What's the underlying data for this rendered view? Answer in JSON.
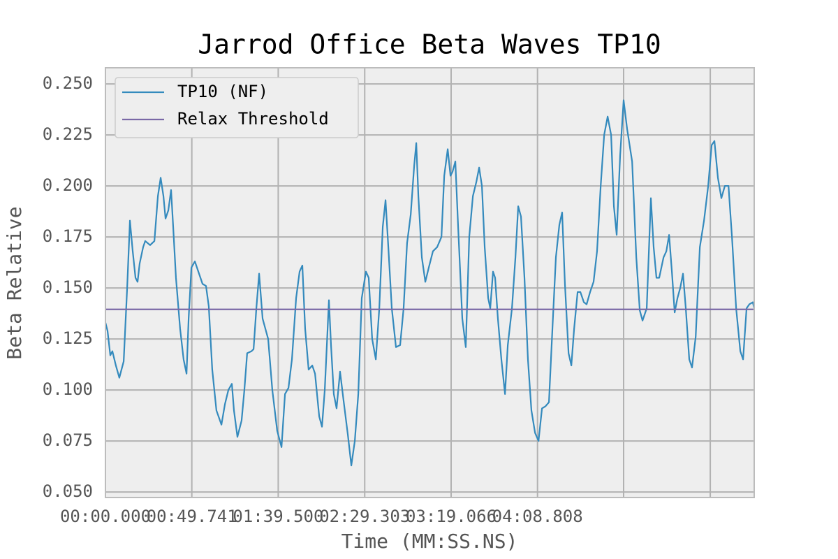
{
  "chart_data": {
    "type": "line",
    "title": "Jarrod Office Beta Waves TP10",
    "xlabel": "Time (MM:SS.NS)",
    "ylabel": "Beta Relative",
    "xlim": [
      0,
      373.6
    ],
    "ylim": [
      0.0473,
      0.2579
    ],
    "xticks": [
      {
        "value": 0,
        "label": "00:00.000"
      },
      {
        "value": 49.741,
        "label": "00:49.741"
      },
      {
        "value": 99.5,
        "label": "01:39.500"
      },
      {
        "value": 149.303,
        "label": "02:29.303"
      },
      {
        "value": 199.066,
        "label": "03:19.066"
      },
      {
        "value": 248.808,
        "label": "04:08.808"
      },
      {
        "value": 298.4,
        "label": null
      },
      {
        "value": 348.3,
        "label": null
      }
    ],
    "yticks": [
      {
        "value": 0.05,
        "label": "0.050"
      },
      0.075,
      {
        "value": 0.1,
        "label": "0.100"
      },
      0.125,
      {
        "value": 0.15,
        "label": "0.150"
      },
      0.175,
      {
        "value": 0.2,
        "label": "0.200"
      },
      0.225,
      {
        "value": 0.25,
        "label": "0.250"
      }
    ],
    "grid": true,
    "legend": "upper left",
    "series": [
      {
        "name": "TP10 (NF)",
        "color": "#348abd",
        "x": [
          0,
          1.2,
          2.8,
          4.0,
          6.0,
          8.0,
          10.5,
          12.5,
          14.1,
          15.7,
          17.3,
          18.5,
          19.7,
          21.7,
          22.9,
          25.7,
          28.2,
          30.2,
          31.8,
          33.4,
          34.6,
          36.2,
          37.8,
          39.0,
          40.6,
          43.0,
          45.0,
          46.7,
          47.9,
          49.5,
          51.5,
          53.5,
          55.9,
          57.9,
          59.5,
          61.5,
          63.9,
          66.8,
          68.8,
          70.8,
          72.8,
          74.0,
          76.0,
          78.4,
          80.0,
          81.6,
          84.1,
          85.3,
          86.9,
          88.5,
          90.5,
          92.1,
          93.7,
          96.1,
          98.9,
          101.4,
          103.4,
          105.4,
          107.4,
          109.8,
          111.8,
          113.4,
          115.0,
          117.0,
          119.1,
          120.7,
          123.1,
          124.7,
          126.3,
          128.7,
          129.9,
          131.5,
          133.1,
          135.1,
          137.1,
          139.6,
          141.6,
          143.6,
          145.6,
          147.6,
          150.0,
          151.6,
          153.6,
          155.7,
          157.7,
          159.7,
          161.3,
          162.9,
          164.9,
          167.3,
          169.7,
          171.7,
          173.7,
          175.8,
          177.8,
          179.0,
          180.2,
          182.2,
          184.2,
          186.2,
          188.6,
          191.0,
          193.5,
          195.1,
          197.1,
          198.7,
          199.9,
          201.5,
          203.1,
          205.5,
          207.5,
          209.5,
          211.6,
          213.6,
          215.2,
          216.8,
          218.4,
          220.4,
          221.6,
          223.2,
          224.4,
          226.0,
          228.0,
          230.1,
          231.7,
          234.1,
          236.1,
          237.7,
          239.3,
          241.3,
          243.3,
          245.3,
          247.4,
          249.4,
          251.4,
          253.4,
          255.4,
          257.4,
          259.4,
          261.4,
          263.0,
          264.6,
          266.7,
          268.3,
          269.9,
          271.9,
          273.5,
          275.5,
          277.1,
          279.1,
          281.1,
          283.1,
          285.2,
          287.2,
          289.2,
          291.2,
          292.8,
          294.4,
          296.4,
          298.4,
          300.4,
          303.3,
          305.7,
          307.7,
          309.3,
          311.7,
          314.1,
          315.7,
          317.3,
          318.9,
          321.4,
          323.0,
          324.6,
          326.2,
          327.8,
          329.4,
          331.0,
          332.6,
          334.2,
          336.2,
          337.8,
          339.9,
          342.3,
          344.7,
          347.1,
          349.1,
          350.7,
          352.7,
          354.7,
          356.7,
          358.8,
          360.8,
          363.2,
          365.6,
          367.2,
          369.2,
          370.8,
          372.8,
          373.6
        ],
        "values": [
          0.133,
          0.129,
          0.117,
          0.119,
          0.112,
          0.106,
          0.114,
          0.15,
          0.183,
          0.168,
          0.155,
          0.153,
          0.162,
          0.17,
          0.173,
          0.171,
          0.173,
          0.195,
          0.204,
          0.195,
          0.184,
          0.188,
          0.198,
          0.18,
          0.155,
          0.13,
          0.115,
          0.108,
          0.135,
          0.16,
          0.163,
          0.158,
          0.152,
          0.151,
          0.141,
          0.11,
          0.09,
          0.083,
          0.093,
          0.1,
          0.103,
          0.09,
          0.077,
          0.085,
          0.1,
          0.118,
          0.119,
          0.12,
          0.14,
          0.157,
          0.135,
          0.13,
          0.125,
          0.1,
          0.08,
          0.072,
          0.098,
          0.101,
          0.115,
          0.145,
          0.158,
          0.161,
          0.13,
          0.11,
          0.112,
          0.108,
          0.087,
          0.082,
          0.1,
          0.144,
          0.122,
          0.098,
          0.091,
          0.109,
          0.095,
          0.078,
          0.063,
          0.075,
          0.098,
          0.145,
          0.158,
          0.155,
          0.125,
          0.115,
          0.14,
          0.18,
          0.193,
          0.17,
          0.14,
          0.121,
          0.122,
          0.14,
          0.172,
          0.186,
          0.21,
          0.221,
          0.195,
          0.165,
          0.153,
          0.16,
          0.168,
          0.17,
          0.175,
          0.205,
          0.218,
          0.205,
          0.207,
          0.212,
          0.18,
          0.135,
          0.121,
          0.175,
          0.195,
          0.202,
          0.209,
          0.2,
          0.17,
          0.145,
          0.14,
          0.158,
          0.155,
          0.135,
          0.115,
          0.098,
          0.122,
          0.14,
          0.165,
          0.19,
          0.185,
          0.155,
          0.115,
          0.09,
          0.079,
          0.075,
          0.091,
          0.092,
          0.094,
          0.13,
          0.165,
          0.181,
          0.187,
          0.152,
          0.118,
          0.112,
          0.13,
          0.148,
          0.148,
          0.143,
          0.142,
          0.148,
          0.153,
          0.168,
          0.2,
          0.225,
          0.234,
          0.225,
          0.19,
          0.176,
          0.215,
          0.242,
          0.228,
          0.212,
          0.165,
          0.139,
          0.134,
          0.14,
          0.194,
          0.17,
          0.155,
          0.155,
          0.165,
          0.168,
          0.176,
          0.158,
          0.138,
          0.145,
          0.15,
          0.157,
          0.14,
          0.115,
          0.111,
          0.126,
          0.17,
          0.183,
          0.2,
          0.22,
          0.222,
          0.204,
          0.194,
          0.2,
          0.2,
          0.175,
          0.14,
          0.119,
          0.115,
          0.14,
          0.142,
          0.143,
          0.14
        ]
      },
      {
        "name": "Relax Threshold",
        "color": "#7a68a6",
        "x": [
          0,
          373.6
        ],
        "values": [
          0.1395,
          0.1395
        ]
      }
    ]
  }
}
